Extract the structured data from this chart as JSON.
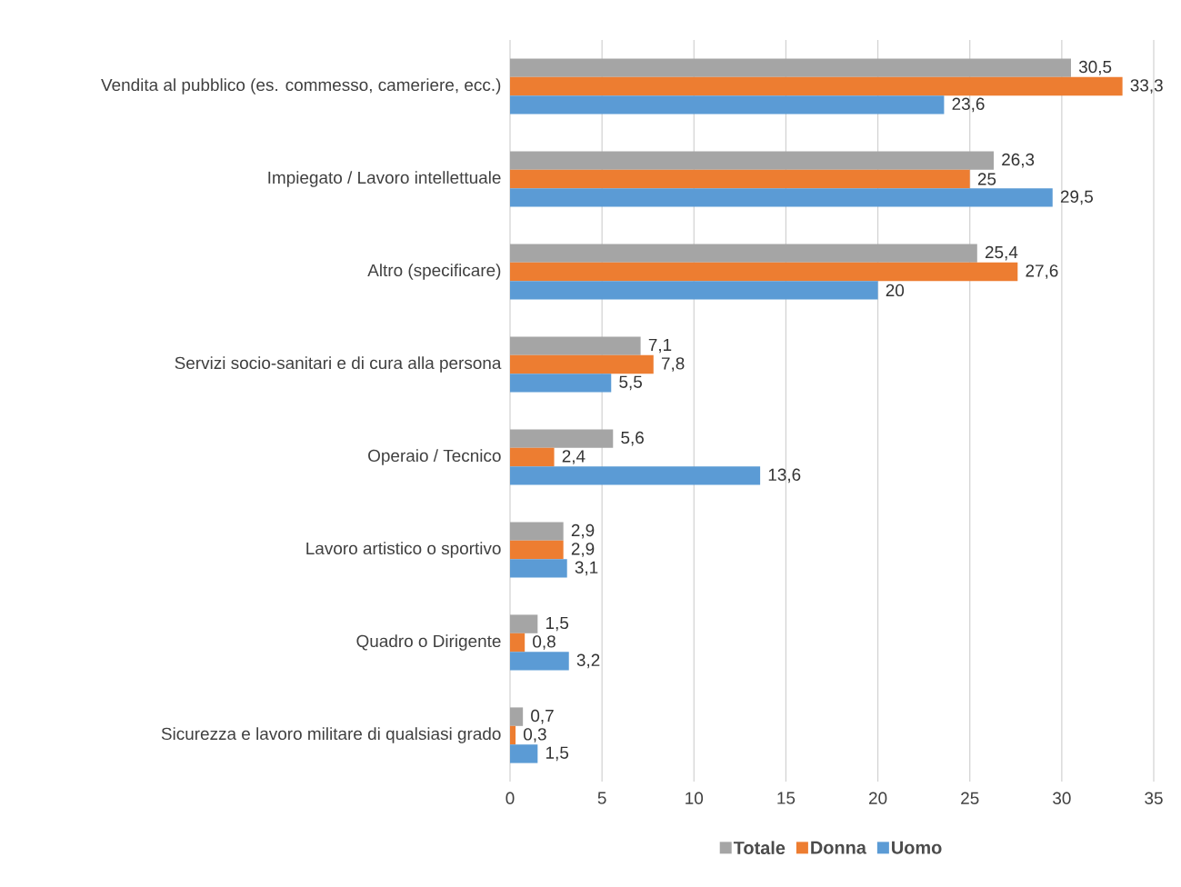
{
  "chart_data": {
    "type": "bar",
    "orientation": "horizontal",
    "categories": [
      "Vendita al pubblico (es. commesso, cameriere, ecc.)",
      "Impiegato / Lavoro intellettuale",
      "Altro (specificare)",
      "Servizi socio-sanitari e di cura alla persona",
      "Operaio / Tecnico",
      "Lavoro artistico o sportivo",
      "Quadro o Dirigente",
      "Sicurezza e lavoro militare di qualsiasi grado"
    ],
    "series": [
      {
        "name": "Totale",
        "color": "#a5a5a5",
        "values": [
          30.5,
          26.3,
          25.4,
          7.1,
          5.6,
          2.9,
          1.5,
          0.7
        ],
        "value_labels": [
          "30,5",
          "26,3",
          "25,4",
          "7,1",
          "5,6",
          "2,9",
          "1,5",
          "0,7"
        ]
      },
      {
        "name": "Donna",
        "color": "#ed7d31",
        "values": [
          33.3,
          25,
          27.6,
          7.8,
          2.4,
          2.9,
          0.8,
          0.3
        ],
        "value_labels": [
          "33,3",
          "25",
          "27,6",
          "7,8",
          "2,4",
          "2,9",
          "0,8",
          "0,3"
        ]
      },
      {
        "name": "Uomo",
        "color": "#5b9bd5",
        "values": [
          23.6,
          29.5,
          20,
          5.5,
          13.6,
          3.1,
          3.2,
          1.5
        ],
        "value_labels": [
          "23,6",
          "29,5",
          "20",
          "5,5",
          "13,6",
          "3,1",
          "3,2",
          "1,5"
        ]
      }
    ],
    "xlim": [
      0,
      35
    ],
    "xticks": [
      0,
      5,
      10,
      15,
      20,
      25,
      30,
      35
    ],
    "grid": "x",
    "legend": "bottom"
  }
}
